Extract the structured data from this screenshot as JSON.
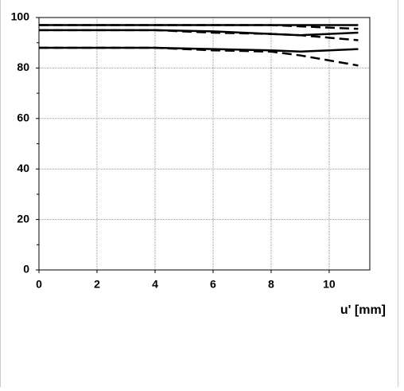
{
  "chart_data": {
    "type": "line",
    "x_label": "u' [mm]",
    "x": [
      0,
      2,
      4,
      6,
      8,
      9,
      10,
      11
    ],
    "xlim": [
      0,
      11.4
    ],
    "xticks": [
      0,
      2,
      4,
      6,
      8,
      10
    ],
    "ylim": [
      0,
      100
    ],
    "yticks": [
      0,
      20,
      40,
      60,
      80,
      100
    ],
    "grid": true,
    "series": [
      {
        "color": "#000000",
        "dashed": false,
        "values": [
          97,
          97,
          97,
          97,
          97,
          97,
          97,
          97
        ]
      },
      {
        "color": "#000000",
        "dashed": true,
        "values": [
          97,
          97,
          97,
          97,
          97,
          96.5,
          96,
          95.5
        ]
      },
      {
        "color": "#000000",
        "dashed": false,
        "values": [
          95,
          95,
          95,
          94.5,
          93.5,
          93,
          93.5,
          94
        ]
      },
      {
        "color": "#000000",
        "dashed": true,
        "values": [
          95,
          95,
          95,
          94,
          93.5,
          93,
          92,
          91
        ]
      },
      {
        "color": "#000000",
        "dashed": false,
        "values": [
          88,
          88,
          88,
          87.5,
          87,
          86.5,
          87,
          87.5
        ]
      },
      {
        "color": "#000000",
        "dashed": true,
        "values": [
          88,
          88,
          88,
          87,
          86.5,
          85,
          83,
          81
        ]
      }
    ]
  }
}
